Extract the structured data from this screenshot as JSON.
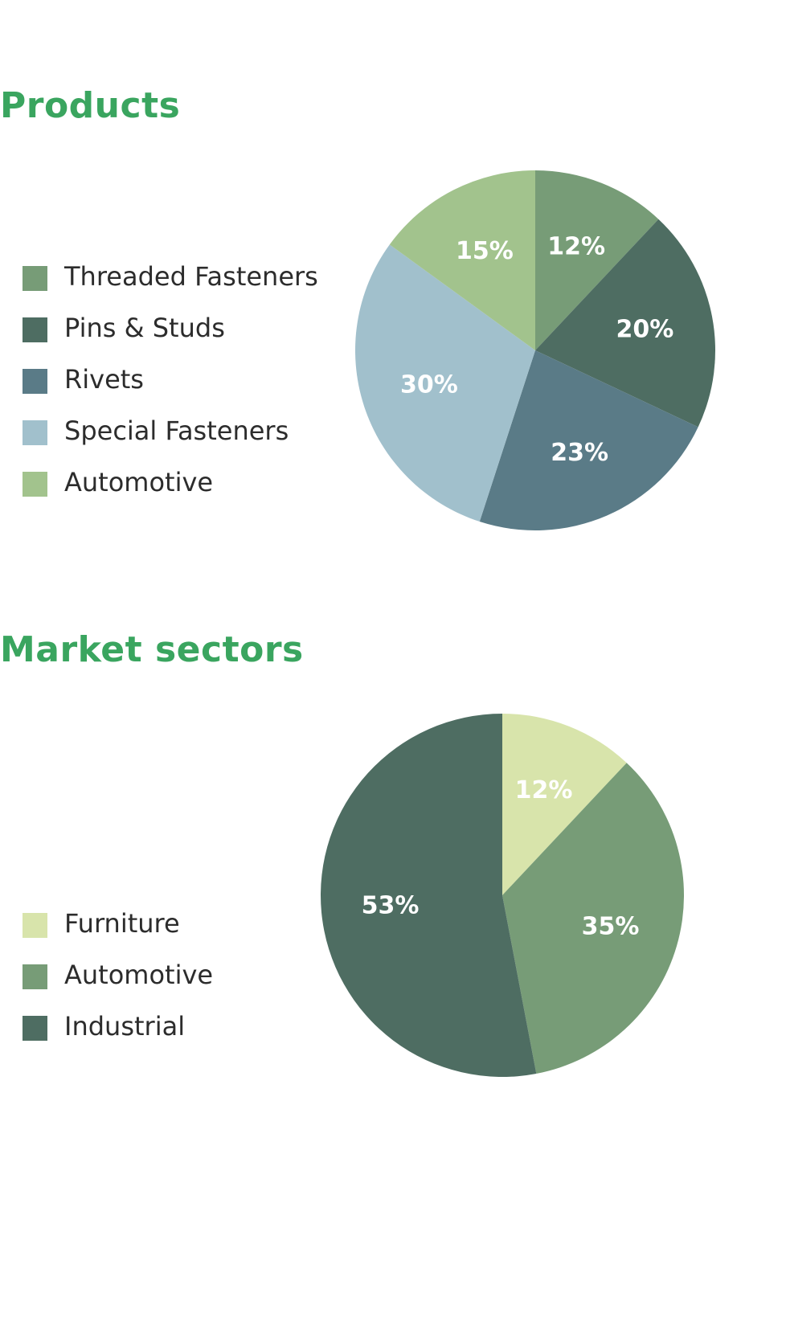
{
  "chart_data": [
    {
      "type": "pie",
      "title": "Products",
      "unit": "%",
      "slices": [
        {
          "name": "Threaded Fasteners",
          "value": 12,
          "label": "12%",
          "color": "#779c77"
        },
        {
          "name": "Pins & Studs",
          "value": 20,
          "label": "20%",
          "color": "#4e6d62"
        },
        {
          "name": "Rivets",
          "value": 23,
          "label": "23%",
          "color": "#5a7b87"
        },
        {
          "name": "Special Fasteners",
          "value": 30,
          "label": "30%",
          "color": "#a1c0cc"
        },
        {
          "name": "Automotive",
          "value": 15,
          "label": "15%",
          "color": "#a2c38d"
        }
      ],
      "legend_position": "left"
    },
    {
      "type": "pie",
      "title": "Market sectors",
      "unit": "%",
      "slices": [
        {
          "name": "Furniture",
          "value": 12,
          "label": "12%",
          "color": "#d8e4ab"
        },
        {
          "name": "Automotive",
          "value": 35,
          "label": "35%",
          "color": "#779c77"
        },
        {
          "name": "Industrial",
          "value": 53,
          "label": "53%",
          "color": "#4e6d62"
        }
      ],
      "legend_position": "left"
    }
  ],
  "colors": {
    "title": "#3aa55f",
    "legend_text": "#2c2c2c",
    "slice_label": "#ffffff"
  }
}
